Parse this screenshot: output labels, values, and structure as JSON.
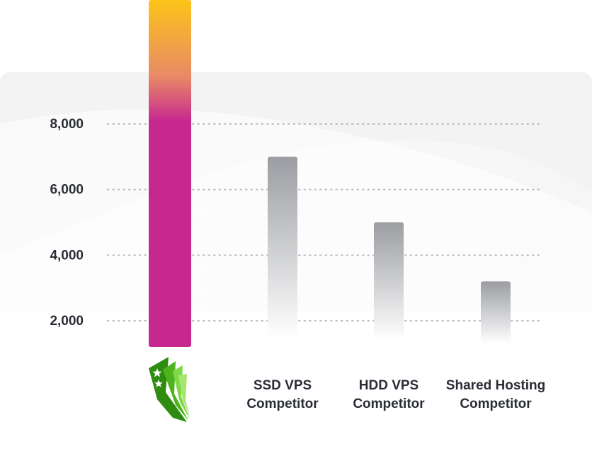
{
  "chart_data": {
    "type": "bar",
    "title": "",
    "xlabel": "",
    "ylabel": "",
    "ylim": [
      0,
      10500
    ],
    "y_ticks": [
      {
        "value": 2000,
        "label": "2,000"
      },
      {
        "value": 4000,
        "label": "4,000"
      },
      {
        "value": 6000,
        "label": "6,000"
      },
      {
        "value": 8000,
        "label": "8,000"
      }
    ],
    "grid": "horizontal dotted",
    "categories": [
      {
        "label_lines": [],
        "logo": "green-star-wing-logo-icon"
      },
      {
        "label_lines": [
          "SSD VPS",
          "Competitor"
        ]
      },
      {
        "label_lines": [
          "HDD VPS",
          "Competitor"
        ]
      },
      {
        "label_lines": [
          "Shared Hosting",
          "Competitor"
        ]
      }
    ],
    "values": [
      10500,
      7000,
      5000,
      3200
    ],
    "colors": {
      "highlight_top": "#fcc419",
      "highlight_mid": "#e88a67",
      "highlight_main": "#c7288f",
      "competitor_top": "#9b9da2",
      "competitor_bottom": "#ffffff",
      "text": "#2a2d35",
      "grid": "#b9bbbf",
      "panel": "#f3f3f3",
      "logo_green_dark": "#2e8c10",
      "logo_green_light": "#7fd84a"
    }
  }
}
